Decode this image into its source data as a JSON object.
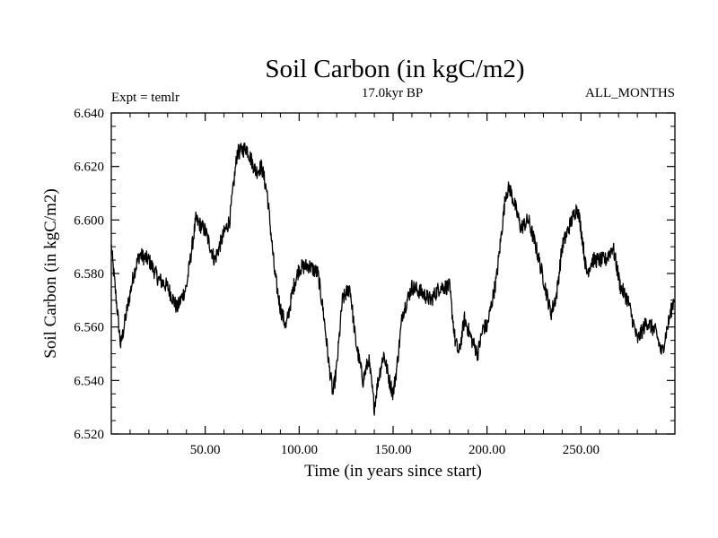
{
  "chart_data": {
    "type": "line",
    "title": "Soil Carbon (in kgC/m2)",
    "subtitle": "17.0kyr BP",
    "left_label": "Expt = temlr",
    "right_label": "ALL_MONTHS",
    "xlabel": "Time (in years since start)",
    "ylabel": "Soil Carbon (in kgC/m2)",
    "xlim": [
      0,
      300
    ],
    "ylim": [
      6.52,
      6.64
    ],
    "x_ticks": [
      50,
      100,
      150,
      200,
      250
    ],
    "x_tick_labels": [
      "50.00",
      "100.00",
      "150.00",
      "200.00",
      "250.00"
    ],
    "y_ticks": [
      6.52,
      6.54,
      6.56,
      6.58,
      6.6,
      6.62,
      6.64
    ],
    "y_tick_labels": [
      "6.520",
      "6.540",
      "6.560",
      "6.580",
      "6.600",
      "6.620",
      "6.640"
    ],
    "series": [
      {
        "name": "Soil Carbon",
        "color": "#000000",
        "noise_amplitude": 0.003,
        "x": [
          0,
          2,
          5,
          8,
          12,
          15,
          20,
          25,
          30,
          35,
          40,
          45,
          50,
          55,
          60,
          63,
          67,
          72,
          77,
          80,
          83,
          87,
          90,
          93,
          97,
          100,
          105,
          110,
          113,
          116,
          118,
          120,
          123,
          127,
          130,
          134,
          137,
          140,
          142,
          145,
          148,
          150,
          152,
          155,
          160,
          165,
          170,
          175,
          180,
          183,
          185,
          188,
          192,
          195,
          198,
          200,
          205,
          210,
          212,
          215,
          218,
          222,
          226,
          230,
          234,
          237,
          240,
          244,
          248,
          250,
          253,
          256,
          260,
          263,
          267,
          271,
          275,
          280,
          285,
          290,
          293,
          296,
          300
        ],
        "values": [
          6.59,
          6.575,
          6.553,
          6.565,
          6.58,
          6.587,
          6.585,
          6.578,
          6.575,
          6.567,
          6.575,
          6.6,
          6.596,
          6.585,
          6.595,
          6.6,
          6.625,
          6.627,
          6.618,
          6.62,
          6.61,
          6.58,
          6.567,
          6.56,
          6.575,
          6.582,
          6.583,
          6.58,
          6.565,
          6.545,
          6.535,
          6.545,
          6.57,
          6.575,
          6.555,
          6.54,
          6.548,
          6.53,
          6.54,
          6.55,
          6.54,
          6.535,
          6.545,
          6.565,
          6.575,
          6.573,
          6.57,
          6.575,
          6.575,
          6.555,
          6.55,
          6.563,
          6.555,
          6.55,
          6.56,
          6.56,
          6.578,
          6.61,
          6.612,
          6.605,
          6.597,
          6.6,
          6.59,
          6.578,
          6.565,
          6.572,
          6.59,
          6.598,
          6.605,
          6.597,
          6.58,
          6.585,
          6.585,
          6.585,
          6.59,
          6.575,
          6.57,
          6.555,
          6.562,
          6.558,
          6.55,
          6.56,
          6.572
        ]
      }
    ]
  }
}
